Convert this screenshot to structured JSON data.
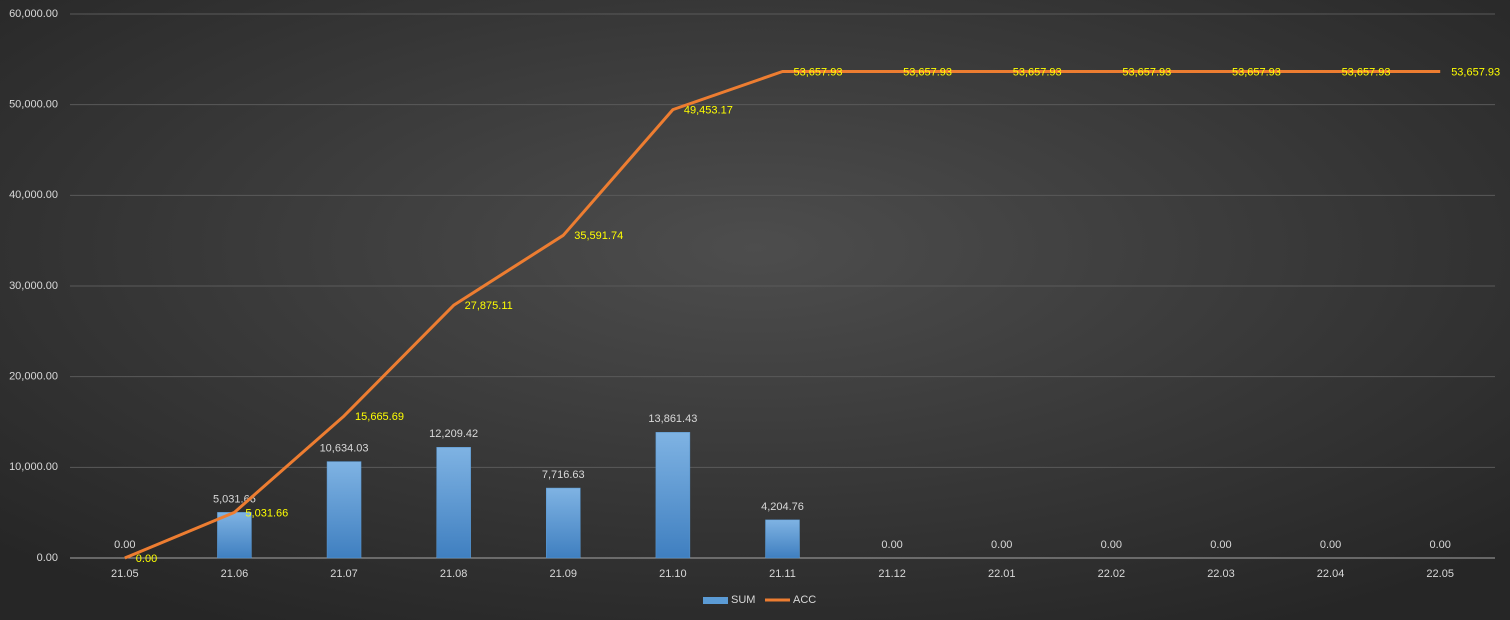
{
  "chart_data": {
    "type": "combo",
    "categories": [
      "21.05",
      "21.06",
      "21.07",
      "21.08",
      "21.09",
      "21.10",
      "21.11",
      "21.12",
      "22.01",
      "22.02",
      "22.03",
      "22.04",
      "22.05"
    ],
    "series": [
      {
        "name": "SUM",
        "type": "bar",
        "color": "#5b9bd5",
        "values": [
          0,
          5031.66,
          10634.03,
          12209.42,
          7716.63,
          13861.43,
          4204.76,
          0,
          0,
          0,
          0,
          0,
          0
        ],
        "value_labels": [
          "0.00",
          "5,031.66",
          "10,634.03",
          "12,209.42",
          "7,716.63",
          "13,861.43",
          "4,204.76",
          "0.00",
          "0.00",
          "0.00",
          "0.00",
          "0.00",
          "0.00"
        ]
      },
      {
        "name": "ACC",
        "type": "line",
        "color": "#ed7d31",
        "values": [
          0,
          5031.66,
          15665.69,
          27875.11,
          35591.74,
          49453.17,
          53657.93,
          53657.93,
          53657.93,
          53657.93,
          53657.93,
          53657.93,
          53657.93
        ],
        "value_labels": [
          "0.00",
          "5,031.66",
          "15,665.69",
          "27,875.11",
          "35,591.74",
          "49,453.17",
          "53,657.93",
          "53,657.93",
          "53,657.93",
          "53,657.93",
          "53,657.93",
          "53,657.93",
          "53,657.93"
        ]
      }
    ],
    "ylim": [
      0,
      60000
    ],
    "yticks": [
      {
        "value": 0,
        "label": "0.00"
      },
      {
        "value": 10000,
        "label": "10,000.00"
      },
      {
        "value": 20000,
        "label": "20,000.00"
      },
      {
        "value": 30000,
        "label": "30,000.00"
      },
      {
        "value": 40000,
        "label": "40,000.00"
      },
      {
        "value": 50000,
        "label": "50,000.00"
      },
      {
        "value": 60000,
        "label": "60,000.00"
      }
    ],
    "grid": true,
    "legend": "bottom"
  }
}
